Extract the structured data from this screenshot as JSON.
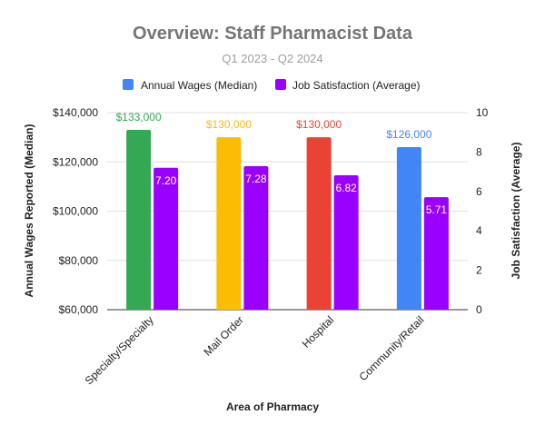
{
  "chart_data": {
    "type": "bar",
    "title": "Overview: Staff Pharmacist Data",
    "subtitle": "Q1 2023 - Q2 2024",
    "xlabel": "Area of Pharmacy",
    "ylabel_left": "Annual Wages Reported (Median)",
    "ylabel_right": "Job Satisfaction (Average)",
    "categories": [
      "Specialty/Specialty",
      "Mail Order",
      "Hospital",
      "Community/Retail"
    ],
    "left_axis": {
      "ylim": [
        60000,
        140000
      ],
      "ticks": [
        60000,
        80000,
        100000,
        120000,
        140000
      ],
      "tick_labels": [
        "$60,000",
        "$80,000",
        "$100,000",
        "$120,000",
        "$140,000"
      ]
    },
    "right_axis": {
      "ylim": [
        0,
        10
      ],
      "ticks": [
        0,
        2,
        4,
        6,
        8,
        10
      ],
      "tick_labels": [
        "0",
        "2",
        "4",
        "6",
        "8",
        "10"
      ]
    },
    "series": [
      {
        "name": "Annual Wages (Median)",
        "axis": "left",
        "color": "#4285f4",
        "values": [
          133000,
          130000,
          130000,
          126000
        ],
        "labels": [
          "$133,000",
          "$130,000",
          "$130,000",
          "$126,000"
        ],
        "point_colors": [
          "#34a853",
          "#fbbc04",
          "#ea4335",
          "#4285f4"
        ]
      },
      {
        "name": "Job Satisfaction (Average)",
        "axis": "right",
        "color": "#9900ff",
        "values": [
          7.2,
          7.28,
          6.82,
          5.71
        ],
        "labels": [
          "7.20",
          "7.28",
          "6.82",
          "5.71"
        ],
        "label_color": "#ffffff"
      }
    ],
    "legend_position": "top",
    "grid": true
  }
}
